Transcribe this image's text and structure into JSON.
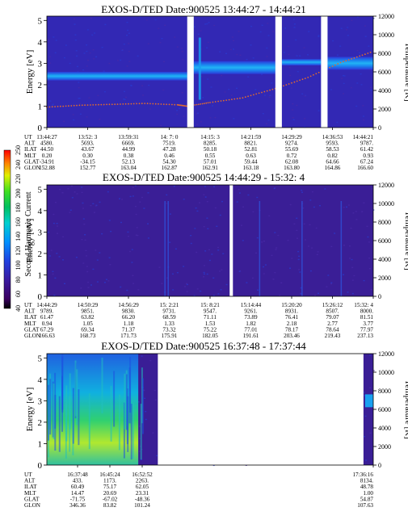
{
  "chart_data": [
    {
      "type": "heatmap",
      "title": "EXOS-D/TED   Date:900525  13:44:27 - 14:44:21",
      "ylabel": "Energy [eV]",
      "ylabel_right": "Temperature [K]",
      "ylim": [
        0,
        5.2
      ],
      "yticks": [
        "0",
        "1",
        "2",
        "3",
        "4",
        "5"
      ],
      "ylim_right": [
        0,
        12000
      ],
      "yticks_right": [
        "0",
        "2000",
        "4000",
        "6000",
        "8000",
        "10000",
        "12000"
      ],
      "data_gaps": [
        [
          0.43,
          0.45
        ],
        [
          0.7,
          0.72
        ],
        [
          0.84,
          0.86
        ]
      ],
      "spectrogram_bands": [
        {
          "x": [
            0,
            0.43
          ],
          "energy": [
            2.2,
            2.6
          ],
          "level": 100
        },
        {
          "x": [
            0.45,
            0.7
          ],
          "energy": [
            2.5,
            3.1
          ],
          "level": 100
        },
        {
          "x": [
            0.72,
            0.84
          ],
          "energy": [
            2.9,
            3.2
          ],
          "level": 100
        },
        {
          "x": [
            0.86,
            1.0
          ],
          "energy": [
            2.7,
            3.3
          ],
          "level": 90
        }
      ],
      "temperature_series": {
        "name": "Temperature",
        "x": [
          0,
          0.1,
          0.2,
          0.3,
          0.4,
          0.43,
          0.5,
          0.6,
          0.7,
          0.8,
          0.9,
          1.0
        ],
        "y": [
          2200,
          2400,
          2500,
          2600,
          2450,
          2300,
          2700,
          3200,
          4200,
          5400,
          7000,
          8200
        ]
      },
      "ephemeris_labels": [
        "UT",
        "ALT",
        "ILAT",
        "MLT",
        "GLAT",
        "GLON"
      ],
      "ephemeris": [
        [
          "13:44:27",
          "4580.",
          "44.50",
          "0.20",
          "-34.91",
          "152.88"
        ],
        [
          "13:52: 3",
          "5693.",
          "43.67",
          "0.30",
          "-34.15",
          "152.77"
        ],
        [
          "13:59:31",
          "6669.",
          "44.99",
          "0.38",
          "52.13",
          "163.04"
        ],
        [
          "14: 7: 0",
          "7519.",
          "47.28",
          "0.46",
          "54.30",
          "162.87"
        ],
        [
          "14:15: 3",
          "8285.",
          "50.18",
          "0.55",
          "57.01",
          "162.91"
        ],
        [
          "14:21:59",
          "8821.",
          "52.81",
          "0.63",
          "59.44",
          "163.18"
        ],
        [
          "14:29:29",
          "9274.",
          "55.69",
          "0.72",
          "62.08",
          "163.80"
        ],
        [
          "14:36:53",
          "9593.",
          "58.53",
          "0.82",
          "64.66",
          "164.86"
        ],
        [
          "14:44:21",
          "9787.",
          "61.42",
          "0.93",
          "67.24",
          "166.60"
        ]
      ]
    },
    {
      "type": "heatmap",
      "title": "EXOS-D/TED   Date:900525  14:44:29 - 15:32: 4",
      "ylabel": "Energy [eV]",
      "ylabel_right": "Temperature [K]",
      "ylim": [
        0,
        5.2
      ],
      "yticks": [
        "0",
        "1",
        "2",
        "3",
        "4",
        "5"
      ],
      "ylim_right": [
        0,
        12000
      ],
      "yticks_right": [
        "0",
        "2000",
        "4000",
        "6000",
        "8000",
        "10000",
        "12000"
      ],
      "data_gaps": [
        [
          0.56,
          0.57
        ]
      ],
      "ephemeris_labels": [
        "UT",
        "ALT",
        "ILAT",
        "MLT",
        "GLAT",
        "GLON"
      ],
      "ephemeris": [
        [
          "14:44:29",
          "9789.",
          "61.47",
          "0.94",
          "67.29",
          "166.63"
        ],
        [
          "14:50:29",
          "9851.",
          "63.82",
          "1.05",
          "69.34",
          "168.73"
        ],
        [
          "14:56:29",
          "9830.",
          "66.20",
          "1.18",
          "71.37",
          "171.73"
        ],
        [
          "15: 2:21",
          "9731.",
          "68.59",
          "1.33",
          "73.32",
          "175.91"
        ],
        [
          "15: 8:21",
          "9547.",
          "71.11",
          "1.53",
          "75.22",
          "182.05"
        ],
        [
          "15:14:44",
          "9261.",
          "73.89",
          "1.82",
          "77.01",
          "191.61"
        ],
        [
          "15:20:20",
          "8931.",
          "76.41",
          "2.18",
          "78.17",
          "203.46"
        ],
        [
          "15:26:12",
          "8507.",
          "79.07",
          "2.77",
          "78.64",
          "219.43"
        ],
        [
          "15:32: 4",
          "8000.",
          "81.51",
          "3.77",
          "77.97",
          "237.13"
        ]
      ]
    },
    {
      "type": "heatmap",
      "title": "EXOS-D/TED   Date:900525  16:37:48 - 17:37:44",
      "ylabel": "Energy [eV]",
      "ylabel_right": "Temperature [K]",
      "ylim": [
        0,
        5.2
      ],
      "yticks": [
        "0",
        "1",
        "2",
        "3",
        "4",
        "5"
      ],
      "ylim_right": [
        0,
        12000
      ],
      "yticks_right": [
        "0",
        "2000",
        "4000",
        "6000",
        "8000",
        "10000",
        "12000"
      ],
      "data_gaps": [
        [
          0.34,
          0.97
        ]
      ],
      "ephemeris_labels": [
        "UT",
        "ALT",
        "ILAT",
        "MLT",
        "GLAT",
        "GLON"
      ],
      "ephemeris": [
        [
          "16:37:48",
          "433.",
          "60.49",
          "14.47",
          "-71.75",
          "346.36"
        ],
        [
          "16:45:24",
          "1173.",
          "75.17",
          "20.69",
          "-67.02",
          "83.82"
        ],
        [
          "16:52:52",
          "2263.",
          "62.05",
          "23.31",
          "-48.36",
          "101.24"
        ],
        [
          "17:36:16",
          "8134.",
          "48.78",
          "1.00",
          "54.87",
          "107.63"
        ]
      ]
    }
  ],
  "colorbar": {
    "label": "Second Harmonic Current",
    "ticks": [
      "40",
      "60",
      "80",
      "100",
      "120",
      "140",
      "160",
      "180",
      "200",
      "220",
      "240",
      "250"
    ]
  }
}
